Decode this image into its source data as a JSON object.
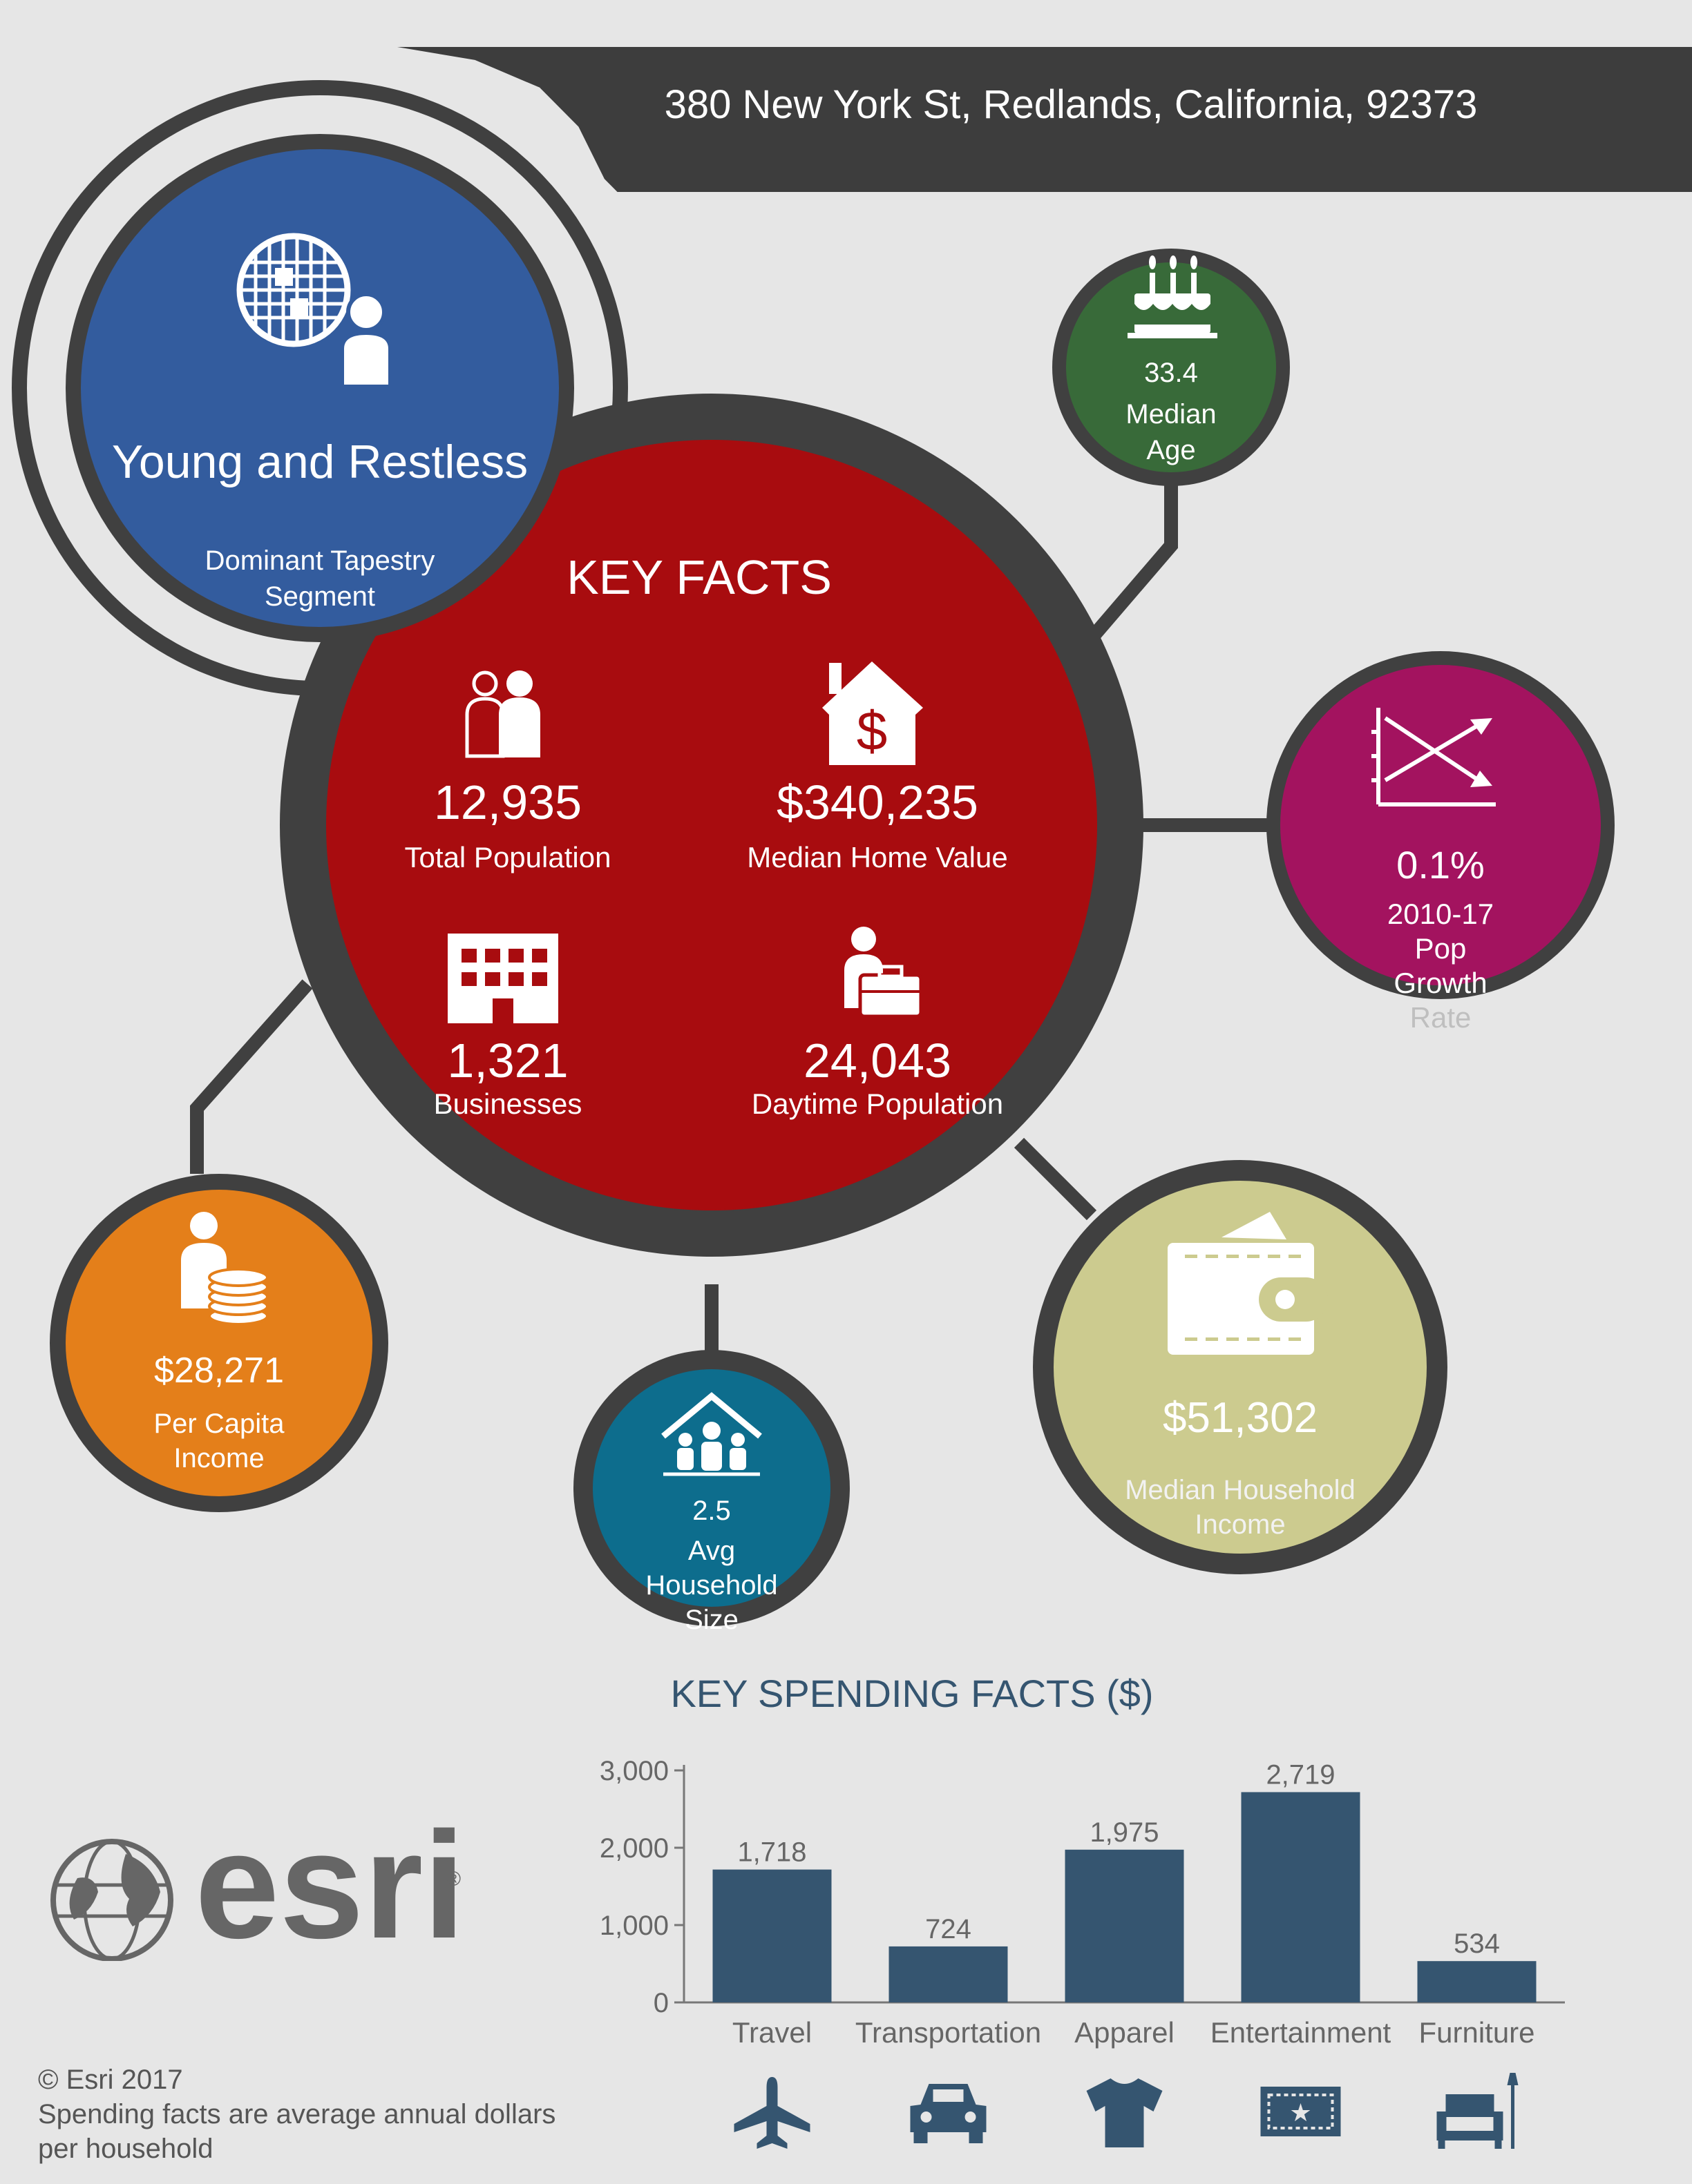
{
  "header": {
    "address": "380 New York St, Redlands, California, 92373"
  },
  "tapestry": {
    "segment": "Young and Restless",
    "caption_line1": "Dominant Tapestry",
    "caption_line2": "Segment",
    "icon": "tapestry-globe-person-icon"
  },
  "key_facts": {
    "title": "KEY FACTS",
    "total_population": {
      "value": "12,935",
      "label": "Total Population",
      "icon": "people-icon"
    },
    "median_home_value": {
      "value": "$340,235",
      "label": "Median Home Value",
      "icon": "house-dollar-icon"
    },
    "businesses": {
      "value": "1,321",
      "label": "Businesses",
      "icon": "building-icon"
    },
    "daytime_population": {
      "value": "24,043",
      "label": "Daytime Population",
      "icon": "worker-briefcase-icon"
    }
  },
  "median_age": {
    "value": "33.4",
    "line1": "Median",
    "line2": "Age",
    "icon": "birthday-cake-icon"
  },
  "pop_growth": {
    "value": "0.1%",
    "line1": "2010-17",
    "line2": "Pop",
    "line3": "Growth",
    "line4": "Rate",
    "icon": "trend-chart-icon"
  },
  "per_capita_income": {
    "value": "$28,271",
    "line1": "Per Capita",
    "line2": "Income",
    "icon": "person-coins-icon"
  },
  "avg_household_size": {
    "value": "2.5",
    "line1": "Avg",
    "line2": "Household",
    "line3": "Size",
    "icon": "house-family-icon"
  },
  "median_household_income": {
    "value": "$51,302",
    "line1": "Median Household",
    "line2": "Income",
    "icon": "wallet-icon"
  },
  "colors": {
    "background": "#e6e6e6",
    "ring": "#404040",
    "key_facts": "#a80c0f",
    "tapestry": "#335c9e",
    "median_age": "#386a39",
    "pop_growth": "#a3135f",
    "per_capita": "#e47f1a",
    "household_size": "#0d6d8d",
    "household_income": "#cccb8f",
    "bars": "#355570"
  },
  "chart_data": {
    "type": "bar",
    "title": "KEY SPENDING FACTS ($)",
    "categories": [
      "Travel",
      "Transportation",
      "Apparel",
      "Entertainment",
      "Furniture"
    ],
    "values": [
      1718,
      724,
      1975,
      2719,
      534
    ],
    "value_labels": [
      "1,718",
      "724",
      "1,975",
      "2,719",
      "534"
    ],
    "yticks": [
      "0",
      "1,000",
      "2,000",
      "3,000"
    ],
    "ylim": [
      0,
      3000
    ],
    "grid": false,
    "category_icons": [
      "airplane-icon",
      "car-icon",
      "tshirt-icon",
      "ticket-icon",
      "armchair-icon"
    ]
  },
  "brand": {
    "logo_text": "esri",
    "registered_mark": "®"
  },
  "footer": {
    "copyright": "© Esri 2017",
    "note_line1": "Spending facts are average annual dollars",
    "note_line2": "per household"
  }
}
